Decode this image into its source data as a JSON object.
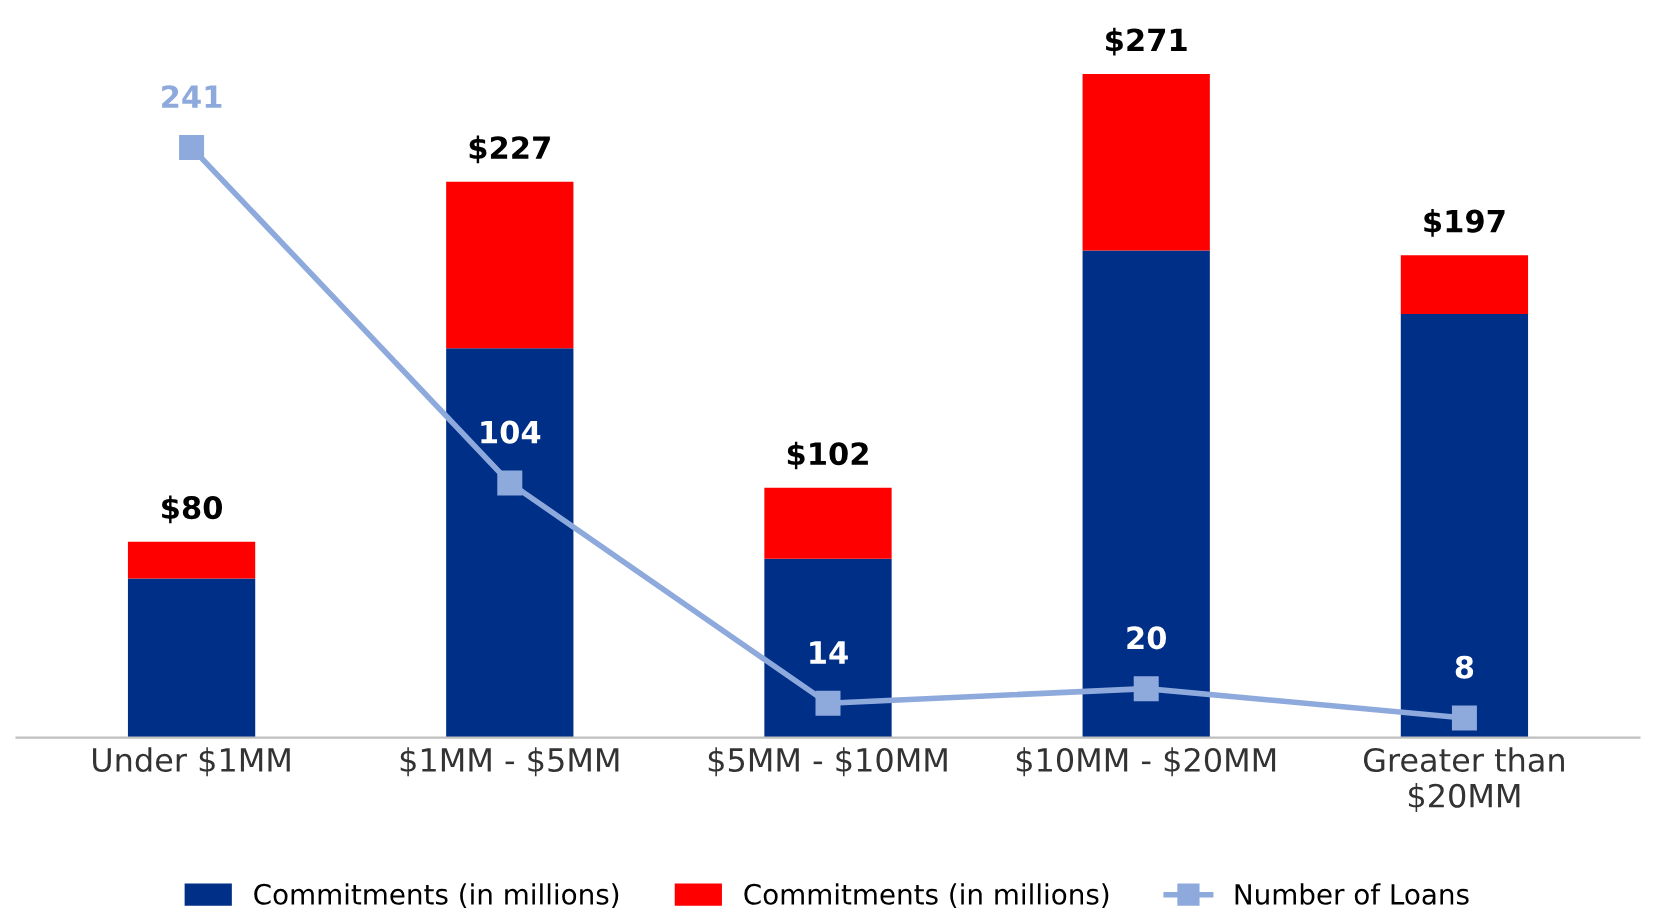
{
  "chart_data": {
    "type": "bar",
    "stacked": true,
    "categories": [
      "Under $1MM",
      "$1MM - $5MM",
      "$5MM - $10MM",
      "$10MM - $20MM",
      "Greater than\n$20MM"
    ],
    "series": [
      {
        "name": "Commitments (in millions)",
        "color": "#002f87",
        "values": [
          65,
          159,
          73,
          199,
          173
        ]
      },
      {
        "name": "Commitments (in millions)",
        "color": "#ff0000",
        "values": [
          15,
          68,
          29,
          72,
          24
        ]
      },
      {
        "name": "Number of Loans",
        "type": "line",
        "color": "#8eaadc",
        "marker": "square",
        "values": [
          241,
          104,
          14,
          20,
          8
        ],
        "data_labels": true
      }
    ],
    "totals": [
      "$80",
      "$227",
      "$102",
      "$271",
      "$197"
    ],
    "tick_labels": "x",
    "grid": false,
    "legend": "bottom"
  }
}
